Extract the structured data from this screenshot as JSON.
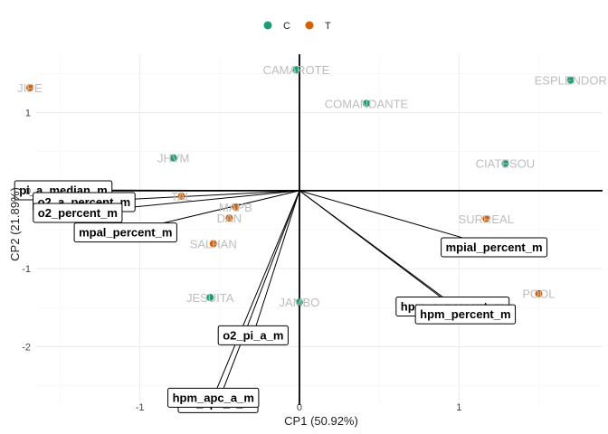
{
  "chart_data": {
    "type": "scatter",
    "title": "",
    "xlabel": "CP1 (50.92%)",
    "ylabel": "CP2 (21.89%)",
    "xlim": [
      -1.65,
      1.9
    ],
    "ylim": [
      -2.75,
      1.75
    ],
    "x_ticks": [
      -1,
      0,
      1
    ],
    "y_ticks": [
      -2,
      -1,
      0,
      1
    ],
    "grid": true,
    "legend_position": "top",
    "colors": {
      "C": "#1b9e77",
      "T": "#d95f02"
    },
    "legend": [
      {
        "key": "C",
        "label": "C"
      },
      {
        "key": "T",
        "label": "T"
      }
    ],
    "points": [
      {
        "label": "CAMAROTE",
        "group": "C",
        "x": -0.02,
        "y": 1.55
      },
      {
        "label": "COMANDANTE",
        "group": "C",
        "x": 0.42,
        "y": 1.12
      },
      {
        "label": "ESPLENDOR",
        "group": "C",
        "x": 1.7,
        "y": 1.42
      },
      {
        "label": "JIPE",
        "group": "T",
        "x": -1.69,
        "y": 1.32
      },
      {
        "label": "JHVM",
        "group": "C",
        "x": -0.79,
        "y": 0.42
      },
      {
        "label": "CIATESOU",
        "group": "C",
        "x": 1.29,
        "y": 0.35
      },
      {
        "label": "SURREAL",
        "group": "T",
        "x": 1.17,
        "y": -0.36
      },
      {
        "label": "TAL",
        "group": "T",
        "x": -0.74,
        "y": -0.07
      },
      {
        "label": "MAPB",
        "group": "T",
        "x": -0.4,
        "y": -0.21
      },
      {
        "label": "DAN",
        "group": "T",
        "x": -0.44,
        "y": -0.35
      },
      {
        "label": "SALHAN",
        "group": "T",
        "x": -0.54,
        "y": -0.68
      },
      {
        "label": "JESUITA",
        "group": "C",
        "x": -0.56,
        "y": -1.37
      },
      {
        "label": "JAMBO",
        "group": "C",
        "x": 0.0,
        "y": -1.43
      },
      {
        "label": "POOL",
        "group": "T",
        "x": 1.5,
        "y": -1.32
      }
    ],
    "variables": [
      {
        "label": "pi_a_median_m",
        "x": -1.48,
        "y": 0.01
      },
      {
        "label": "o2_a_percent_m",
        "x": -1.35,
        "y": -0.14
      },
      {
        "label": "o2_percent_m",
        "x": -1.39,
        "y": -0.28
      },
      {
        "label": "mpal_percent_m",
        "x": -1.09,
        "y": -0.53
      },
      {
        "label": "mpial_percent_m",
        "x": 1.22,
        "y": -0.72
      },
      {
        "label": "hpm_a_percent_m",
        "x": 0.96,
        "y": -1.48
      },
      {
        "label": "hpm_percent_m",
        "x": 1.04,
        "y": -1.58
      },
      {
        "label": "o2_pi_a_m",
        "x": -0.29,
        "y": -1.85
      },
      {
        "label": "o2_apc_a_m",
        "x": -0.51,
        "y": -2.72
      },
      {
        "label": "hpm_apc_a_m",
        "x": -0.54,
        "y": -2.65
      }
    ]
  }
}
